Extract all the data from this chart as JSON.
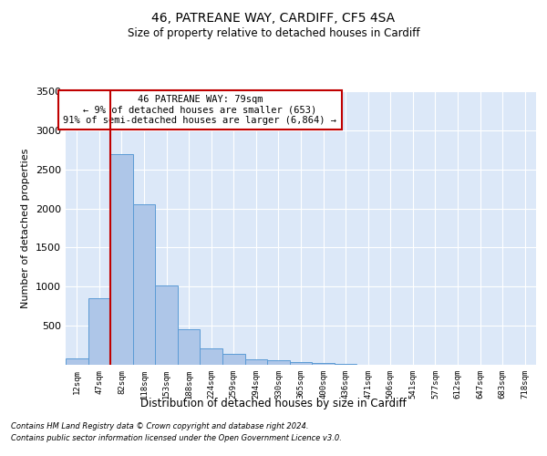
{
  "title1": "46, PATREANE WAY, CARDIFF, CF5 4SA",
  "title2": "Size of property relative to detached houses in Cardiff",
  "xlabel": "Distribution of detached houses by size in Cardiff",
  "ylabel": "Number of detached properties",
  "footnote1": "Contains HM Land Registry data © Crown copyright and database right 2024.",
  "footnote2": "Contains public sector information licensed under the Open Government Licence v3.0.",
  "annotation_line1": "46 PATREANE WAY: 79sqm",
  "annotation_line2": "← 9% of detached houses are smaller (653)",
  "annotation_line3": "91% of semi-detached houses are larger (6,864) →",
  "bar_color": "#aec6e8",
  "bar_edge_color": "#5b9bd5",
  "vline_color": "#c00000",
  "background_color": "#dce8f8",
  "categories": [
    "12sqm",
    "47sqm",
    "82sqm",
    "118sqm",
    "153sqm",
    "188sqm",
    "224sqm",
    "259sqm",
    "294sqm",
    "330sqm",
    "365sqm",
    "400sqm",
    "436sqm",
    "471sqm",
    "506sqm",
    "541sqm",
    "577sqm",
    "612sqm",
    "647sqm",
    "683sqm",
    "718sqm"
  ],
  "values": [
    80,
    850,
    2700,
    2050,
    1010,
    450,
    205,
    135,
    70,
    60,
    35,
    20,
    8,
    5,
    3,
    2,
    1,
    0,
    0,
    0,
    0
  ],
  "vline_x_index": 2,
  "ylim": [
    0,
    3500
  ],
  "yticks": [
    0,
    500,
    1000,
    1500,
    2000,
    2500,
    3000,
    3500
  ]
}
